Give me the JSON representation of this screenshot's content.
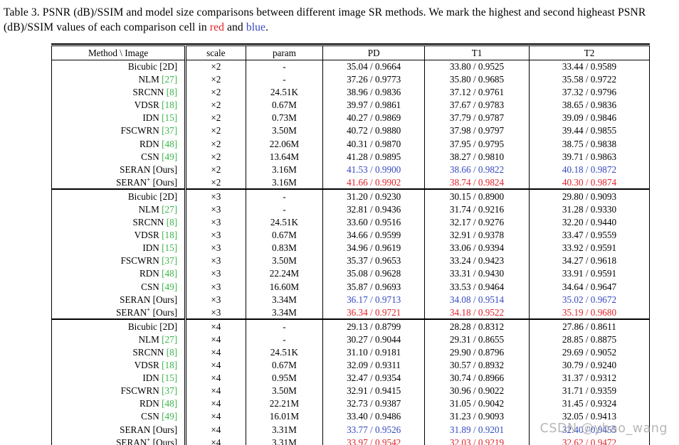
{
  "caption": {
    "prefix": "Table 3. PSNR (dB)/SSIM and model size comparisons between different image SR methods. We mark the highest and second higheast PSNR (dB)/SSIM values of each comparison cell in ",
    "red_word": "red",
    "mid": " and ",
    "blue_word": "blue",
    "suffix": "."
  },
  "colors": {
    "cite_green": "#3cb44a",
    "best_red": "#e32128",
    "second_blue": "#3448c0",
    "watermark_gray": "#9a9a9a"
  },
  "watermark": "CSDN @ybao_wang",
  "table": {
    "headers": [
      "Method \\ Image",
      "scale",
      "param",
      "PD",
      "T1",
      "T2"
    ],
    "groups": [
      {
        "scale": "×2",
        "rows": [
          {
            "name": "Bicubic",
            "cite": "[2D]",
            "cite_green": false,
            "scale": "×2",
            "param": "-",
            "pd": "35.04 / 0.9664",
            "t1": "33.80 / 0.9525",
            "t2": "33.44 / 0.9589",
            "hl": null
          },
          {
            "name": "NLM",
            "cite": "[27]",
            "cite_green": true,
            "scale": "×2",
            "param": "-",
            "pd": "37.26 / 0.9773",
            "t1": "35.80 / 0.9685",
            "t2": "35.58 / 0.9722",
            "hl": null
          },
          {
            "name": "SRCNN",
            "cite": "[8]",
            "cite_green": true,
            "scale": "×2",
            "param": "24.51K",
            "pd": "38.96 / 0.9836",
            "t1": "37.12 / 0.9761",
            "t2": "37.32 / 0.9796",
            "hl": null
          },
          {
            "name": "VDSR",
            "cite": "[18]",
            "cite_green": true,
            "scale": "×2",
            "param": "0.67M",
            "pd": "39.97 / 0.9861",
            "t1": "37.67 / 0.9783",
            "t2": "38.65 / 0.9836",
            "hl": null
          },
          {
            "name": "IDN",
            "cite": "[15]",
            "cite_green": true,
            "scale": "×2",
            "param": "0.73M",
            "pd": "40.27 / 0.9869",
            "t1": "37.79 / 0.9787",
            "t2": "39.09 / 0.9846",
            "hl": null
          },
          {
            "name": "FSCWRN",
            "cite": "[37]",
            "cite_green": true,
            "scale": "×2",
            "param": "3.50M",
            "pd": "40.72 / 0.9880",
            "t1": "37.98 / 0.9797",
            "t2": "39.44 / 0.9855",
            "hl": null
          },
          {
            "name": "RDN",
            "cite": "[48]",
            "cite_green": true,
            "scale": "×2",
            "param": "22.06M",
            "pd": "40.31 / 0.9870",
            "t1": "37.95 / 0.9795",
            "t2": "38.75 / 0.9838",
            "hl": null
          },
          {
            "name": "CSN",
            "cite": "[49]",
            "cite_green": true,
            "scale": "×2",
            "param": "13.64M",
            "pd": "41.28 / 0.9895",
            "t1": "38.27 / 0.9810",
            "t2": "39.71 / 0.9863",
            "hl": null
          },
          {
            "name": "SERAN",
            "cite": "[Ours]",
            "cite_green": false,
            "scale": "×2",
            "param": "3.16M",
            "pd": "41.53 / 0.9900",
            "t1": "38.66 / 0.9822",
            "t2": "40.18 / 0.9872",
            "hl": "blue"
          },
          {
            "name": "SERAN",
            "sup": "+",
            "cite": "[Ours]",
            "cite_green": false,
            "scale": "×2",
            "param": "3.16M",
            "pd": "41.66 / 0.9902",
            "t1": "38.74 / 0.9824",
            "t2": "40.30 / 0.9874",
            "hl": "red"
          }
        ]
      },
      {
        "scale": "×3",
        "rows": [
          {
            "name": "Bicubic",
            "cite": "[2D]",
            "cite_green": false,
            "scale": "×3",
            "param": "-",
            "pd": "31.20 / 0.9230",
            "t1": "30.15 / 0.8900",
            "t2": "29.80 / 0.9093",
            "hl": null
          },
          {
            "name": "NLM",
            "cite": "[27]",
            "cite_green": true,
            "scale": "×3",
            "param": "-",
            "pd": "32.81 / 0.9436",
            "t1": "31.74 / 0.9216",
            "t2": "31.28 / 0.9330",
            "hl": null
          },
          {
            "name": "SRCNN",
            "cite": "[8]",
            "cite_green": true,
            "scale": "×3",
            "param": "24.51K",
            "pd": "33.60 / 0.9516",
            "t1": "32.17 / 0.9276",
            "t2": "32.20 / 0.9440",
            "hl": null
          },
          {
            "name": "VDSR",
            "cite": "[18]",
            "cite_green": true,
            "scale": "×3",
            "param": "0.67M",
            "pd": "34.66 / 0.9599",
            "t1": "32.91 / 0.9378",
            "t2": "33.47 / 0.9559",
            "hl": null
          },
          {
            "name": "IDN",
            "cite": "[15]",
            "cite_green": true,
            "scale": "×3",
            "param": "0.83M",
            "pd": "34.96 / 0.9619",
            "t1": "33.06 / 0.9394",
            "t2": "33.92 / 0.9591",
            "hl": null
          },
          {
            "name": "FSCWRN",
            "cite": "[37]",
            "cite_green": true,
            "scale": "×3",
            "param": "3.50M",
            "pd": "35.37 / 0.9653",
            "t1": "33.24 / 0.9423",
            "t2": "34.27 / 0.9618",
            "hl": null
          },
          {
            "name": "RDN",
            "cite": "[48]",
            "cite_green": true,
            "scale": "×3",
            "param": "22.24M",
            "pd": "35.08 / 0.9628",
            "t1": "33.31 / 0.9430",
            "t2": "33.91 / 0.9591",
            "hl": null
          },
          {
            "name": "CSN",
            "cite": "[49]",
            "cite_green": true,
            "scale": "×3",
            "param": "16.60M",
            "pd": "35.87 / 0.9693",
            "t1": "33.53 / 0.9464",
            "t2": "34.64 / 0.9647",
            "hl": null
          },
          {
            "name": "SERAN",
            "cite": "[Ours]",
            "cite_green": false,
            "scale": "×3",
            "param": "3.34M",
            "pd": "36.17 / 0.9713",
            "t1": "34.08 / 0.9514",
            "t2": "35.02 / 0.9672",
            "hl": "blue"
          },
          {
            "name": "SERAN",
            "sup": "+",
            "cite": "[Ours]",
            "cite_green": false,
            "scale": "×3",
            "param": "3.34M",
            "pd": "36.34 / 0.9721",
            "t1": "34.18 / 0.9522",
            "t2": "35.19 / 0.9680",
            "hl": "red"
          }
        ]
      },
      {
        "scale": "×4",
        "rows": [
          {
            "name": "Bicubic",
            "cite": "[2D]",
            "cite_green": false,
            "scale": "×4",
            "param": "-",
            "pd": "29.13 / 0.8799",
            "t1": "28.28 / 0.8312",
            "t2": "27.86 / 0.8611",
            "hl": null
          },
          {
            "name": "NLM",
            "cite": "[27]",
            "cite_green": true,
            "scale": "×4",
            "param": "-",
            "pd": "30.27 / 0.9044",
            "t1": "29.31 / 0.8655",
            "t2": "28.85 / 0.8875",
            "hl": null
          },
          {
            "name": "SRCNN",
            "cite": "[8]",
            "cite_green": true,
            "scale": "×4",
            "param": "24.51K",
            "pd": "31.10 / 0.9181",
            "t1": "29.90 / 0.8796",
            "t2": "29.69 / 0.9052",
            "hl": null
          },
          {
            "name": "VDSR",
            "cite": "[18]",
            "cite_green": true,
            "scale": "×4",
            "param": "0.67M",
            "pd": "32.09 / 0.9311",
            "t1": "30.57 / 0.8932",
            "t2": "30.79 / 0.9240",
            "hl": null
          },
          {
            "name": "IDN",
            "cite": "[15]",
            "cite_green": true,
            "scale": "×4",
            "param": "0.95M",
            "pd": "32.47 / 0.9354",
            "t1": "30.74 / 0.8966",
            "t2": "31.37 / 0.9312",
            "hl": null
          },
          {
            "name": "FSCWRN",
            "cite": "[37]",
            "cite_green": true,
            "scale": "×4",
            "param": "3.50M",
            "pd": "32.91 / 0.9415",
            "t1": "30.96 / 0.9022",
            "t2": "31.71 / 0.9359",
            "hl": null
          },
          {
            "name": "RDN",
            "cite": "[48]",
            "cite_green": true,
            "scale": "×4",
            "param": "22.21M",
            "pd": "32.73 / 0.9387",
            "t1": "31.05 / 0.9042",
            "t2": "31.45 / 0.9324",
            "hl": null
          },
          {
            "name": "CSN",
            "cite": "[49]",
            "cite_green": true,
            "scale": "×4",
            "param": "16.01M",
            "pd": "33.40 / 0.9486",
            "t1": "31.23 / 0.9093",
            "t2": "32.05 / 0.9413",
            "hl": null
          },
          {
            "name": "SERAN",
            "cite": "[Ours]",
            "cite_green": false,
            "scale": "×4",
            "param": "3.31M",
            "pd": "33.77 / 0.9526",
            "t1": "31.89 / 0.9201",
            "t2": "32.40 / 0.9455",
            "hl": "blue"
          },
          {
            "name": "SERAN",
            "sup": "+",
            "cite": "[Ours]",
            "cite_green": false,
            "scale": "×4",
            "param": "3.31M",
            "pd": "33.97 / 0.9542",
            "t1": "32.03 / 0.9219",
            "t2": "32.62 / 0.9472",
            "hl": "red"
          }
        ]
      }
    ]
  }
}
